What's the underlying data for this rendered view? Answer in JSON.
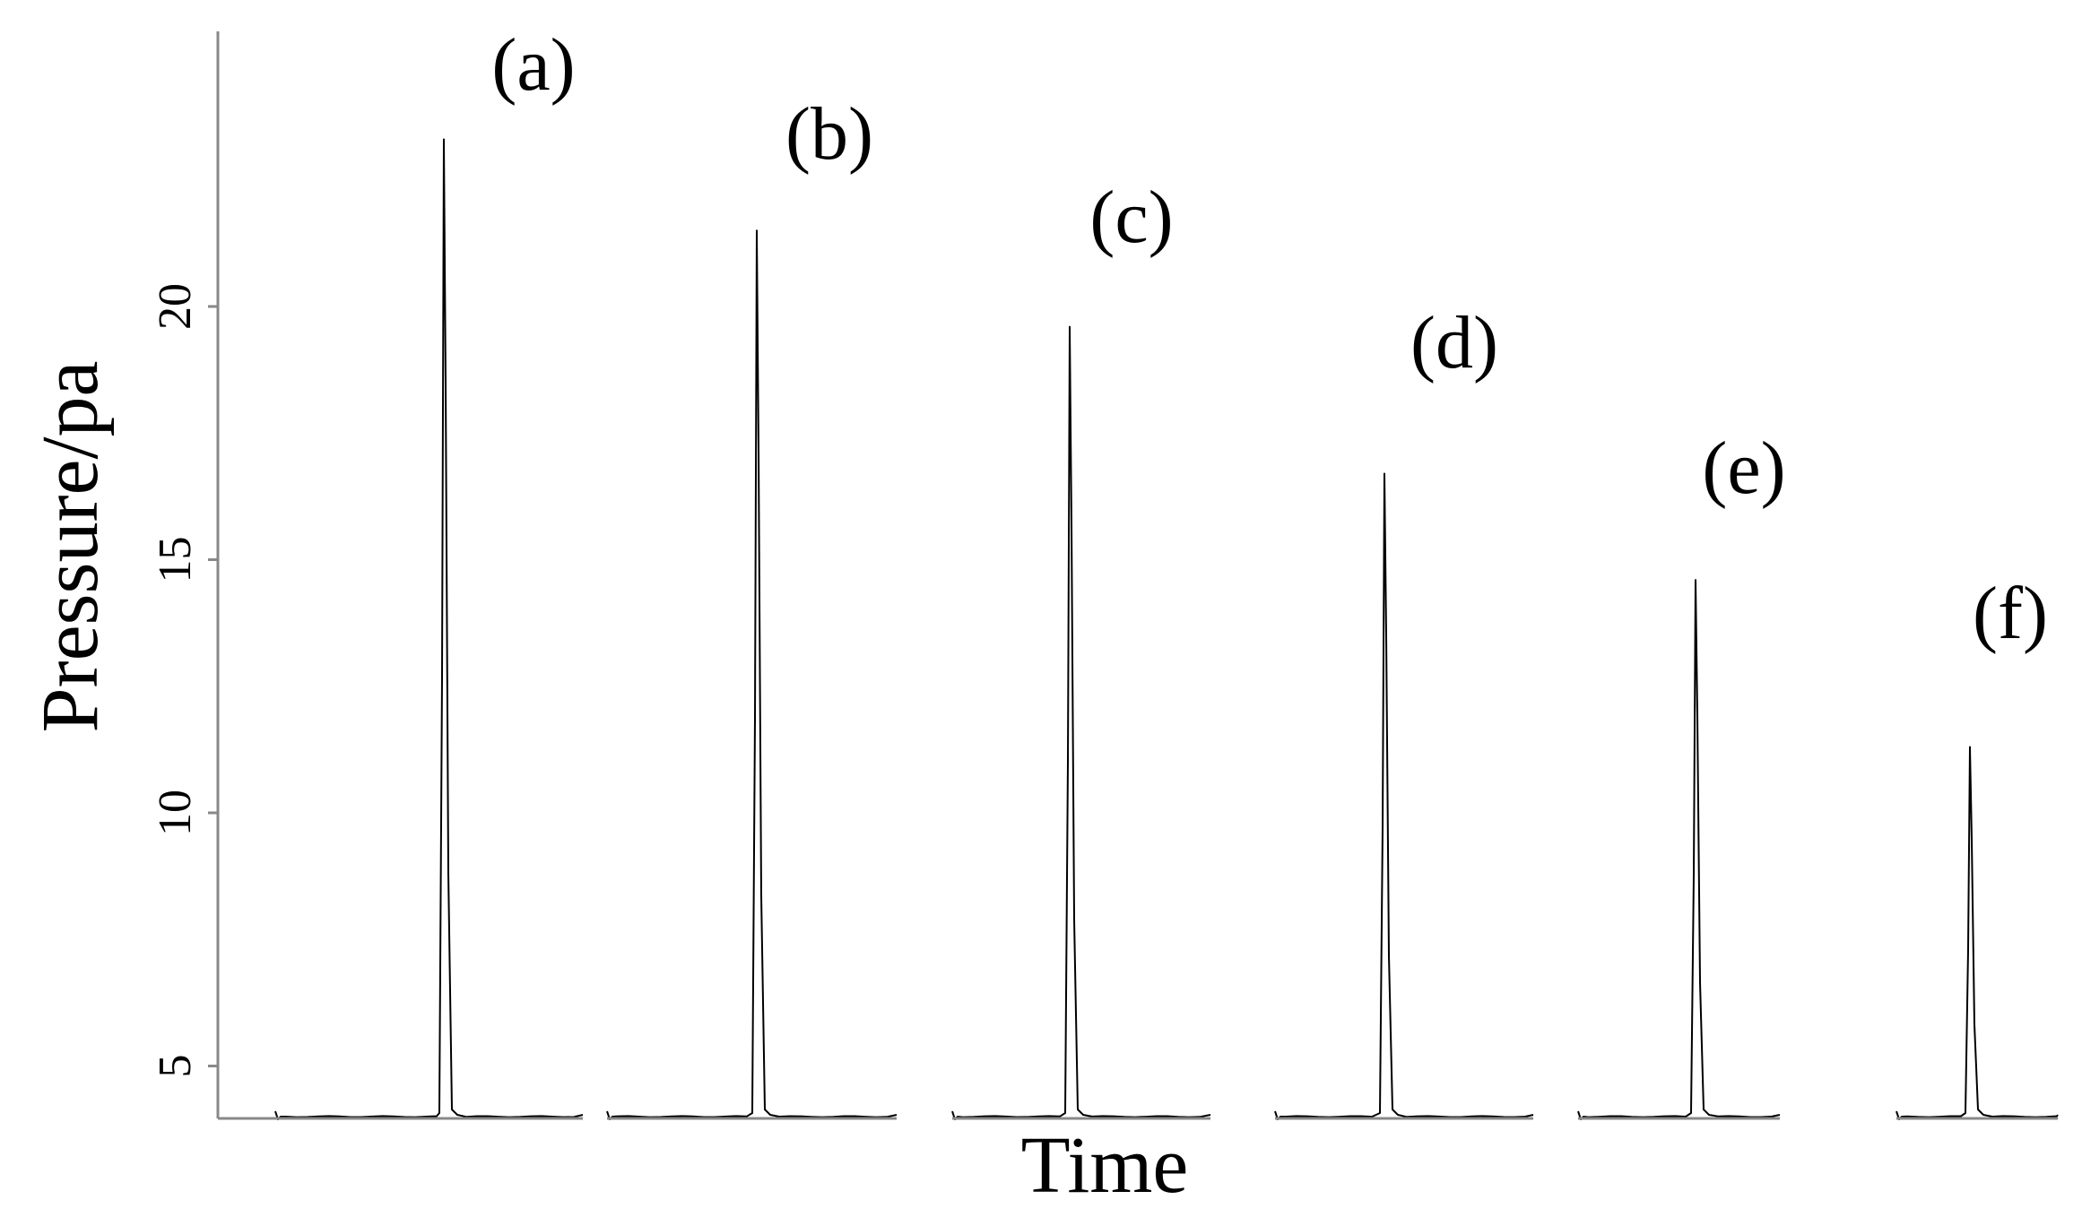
{
  "chart_data": {
    "type": "line",
    "title": "",
    "xlabel": "Time",
    "ylabel": "Pressure/pa",
    "ylim": [
      0,
      25
    ],
    "yticks": [
      5,
      10,
      15,
      20
    ],
    "grid": false,
    "legend": "none",
    "line_color": "#000000",
    "baseline": 4,
    "series": [
      {
        "label": "(a)",
        "peak": 23.3
      },
      {
        "label": "(b)",
        "peak": 21.5
      },
      {
        "label": "(c)",
        "peak": 19.6
      },
      {
        "label": "(d)",
        "peak": 16.7
      },
      {
        "label": "(e)",
        "peak": 14.6
      },
      {
        "label": "(f)",
        "peak": 11.3
      }
    ]
  }
}
